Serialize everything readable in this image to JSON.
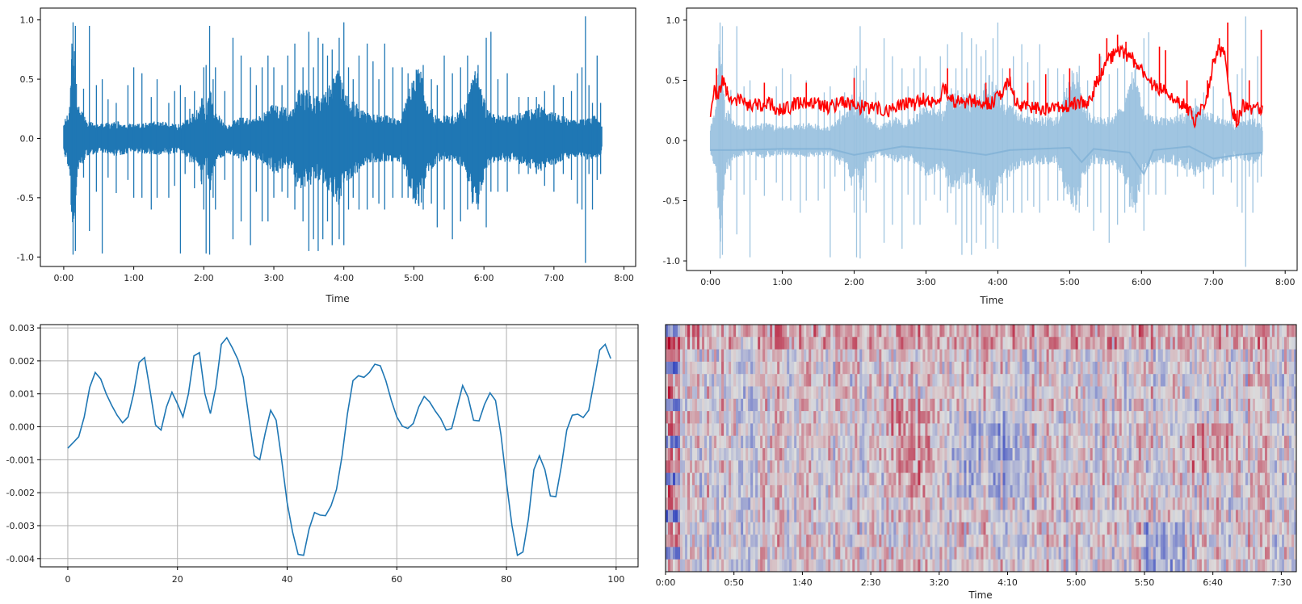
{
  "chart_data": [
    {
      "type": "line",
      "kind": "waveform",
      "series": [
        {
          "color": "#1f77b4"
        }
      ],
      "xlabel": "Time",
      "x_ticks": [
        "0:00",
        "1:00",
        "2:00",
        "3:00",
        "4:00",
        "5:00",
        "6:00",
        "7:00",
        "8:00"
      ],
      "xlim": [
        -20,
        490
      ],
      "y_ticks": [
        "-1.0",
        "-0.5",
        "0.0",
        "0.5",
        "1.0"
      ],
      "ylim": [
        -1.08,
        1.1
      ],
      "duration_s": 461,
      "envelope": [
        [
          0,
          0.12
        ],
        [
          5,
          0.3
        ],
        [
          8,
          0.95
        ],
        [
          12,
          0.3
        ],
        [
          20,
          0.15
        ],
        [
          30,
          0.12
        ],
        [
          45,
          0.15
        ],
        [
          60,
          0.12
        ],
        [
          80,
          0.15
        ],
        [
          100,
          0.12
        ],
        [
          115,
          0.25
        ],
        [
          118,
          0.4
        ],
        [
          122,
          0.2
        ],
        [
          125,
          0.5
        ],
        [
          128,
          0.25
        ],
        [
          140,
          0.12
        ],
        [
          155,
          0.2
        ],
        [
          160,
          0.15
        ],
        [
          170,
          0.2
        ],
        [
          180,
          0.3
        ],
        [
          195,
          0.25
        ],
        [
          200,
          0.45
        ],
        [
          210,
          0.4
        ],
        [
          220,
          0.35
        ],
        [
          230,
          0.5
        ],
        [
          236,
          0.6
        ],
        [
          240,
          0.4
        ],
        [
          250,
          0.3
        ],
        [
          260,
          0.22
        ],
        [
          270,
          0.2
        ],
        [
          290,
          0.2
        ],
        [
          298,
          0.5
        ],
        [
          305,
          0.62
        ],
        [
          312,
          0.3
        ],
        [
          320,
          0.2
        ],
        [
          335,
          0.2
        ],
        [
          345,
          0.3
        ],
        [
          350,
          0.55
        ],
        [
          355,
          0.6
        ],
        [
          362,
          0.25
        ],
        [
          370,
          0.2
        ],
        [
          385,
          0.2
        ],
        [
          395,
          0.23
        ],
        [
          405,
          0.3
        ],
        [
          415,
          0.25
        ],
        [
          425,
          0.2
        ],
        [
          440,
          0.15
        ],
        [
          455,
          0.2
        ],
        [
          461,
          0.12
        ]
      ],
      "spikes": [
        [
          7,
          0.8,
          -0.55
        ],
        [
          8,
          0.98,
          -0.98
        ],
        [
          10,
          0.95,
          -0.95
        ],
        [
          17,
          0.42,
          -0.33
        ],
        [
          22,
          0.95,
          -0.78
        ],
        [
          28,
          0.45,
          -0.45
        ],
        [
          33,
          0.5,
          -0.97
        ],
        [
          38,
          0.33,
          -0.33
        ],
        [
          45,
          0.3,
          -0.46
        ],
        [
          55,
          0.45,
          -0.35
        ],
        [
          60,
          0.6,
          -0.5
        ],
        [
          67,
          0.55,
          -0.5
        ],
        [
          75,
          0.35,
          -0.6
        ],
        [
          80,
          0.5,
          -0.5
        ],
        [
          90,
          0.3,
          -0.5
        ],
        [
          95,
          0.4,
          -0.4
        ],
        [
          100,
          0.45,
          -0.97
        ],
        [
          104,
          0.35,
          -0.3
        ],
        [
          108,
          0.25,
          -0.2
        ],
        [
          112,
          0.4,
          -0.42
        ],
        [
          120,
          0.6,
          -0.6
        ],
        [
          122,
          0.62,
          -0.97
        ],
        [
          125,
          0.95,
          -0.98
        ],
        [
          128,
          0.5,
          -0.5
        ],
        [
          130,
          0.6,
          -0.6
        ],
        [
          138,
          0.4,
          -0.35
        ],
        [
          145,
          0.85,
          -0.85
        ],
        [
          152,
          0.7,
          -0.7
        ],
        [
          160,
          0.6,
          -0.9
        ],
        [
          165,
          0.45,
          -0.45
        ],
        [
          170,
          0.6,
          -0.7
        ],
        [
          175,
          0.7,
          -0.7
        ],
        [
          180,
          0.6,
          -0.5
        ],
        [
          187,
          0.45,
          -0.45
        ],
        [
          192,
          0.7,
          -0.5
        ],
        [
          198,
          0.8,
          -0.6
        ],
        [
          205,
          0.6,
          -0.7
        ],
        [
          210,
          0.9,
          -0.95
        ],
        [
          214,
          0.6,
          -0.85
        ],
        [
          218,
          0.85,
          -0.95
        ],
        [
          222,
          0.8,
          -0.85
        ],
        [
          226,
          0.7,
          -0.7
        ],
        [
          230,
          0.75,
          -0.9
        ],
        [
          236,
          0.85,
          -0.85
        ],
        [
          240,
          0.98,
          -0.9
        ],
        [
          244,
          0.6,
          -0.6
        ],
        [
          248,
          0.5,
          -0.5
        ],
        [
          253,
          0.7,
          -0.6
        ],
        [
          260,
          0.8,
          -0.6
        ],
        [
          265,
          0.65,
          -0.5
        ],
        [
          270,
          0.5,
          -0.55
        ],
        [
          275,
          0.8,
          -0.6
        ],
        [
          282,
          0.6,
          -0.5
        ],
        [
          290,
          0.6,
          -0.5
        ],
        [
          295,
          0.55,
          -0.5
        ],
        [
          302,
          0.58,
          -0.52
        ],
        [
          308,
          0.62,
          -0.6
        ],
        [
          315,
          0.5,
          -0.55
        ],
        [
          320,
          0.45,
          -0.75
        ],
        [
          326,
          0.7,
          -0.6
        ],
        [
          333,
          0.55,
          -0.85
        ],
        [
          340,
          0.6,
          -0.7
        ],
        [
          346,
          0.7,
          -0.6
        ],
        [
          350,
          0.45,
          -0.55
        ],
        [
          355,
          0.62,
          -0.6
        ],
        [
          362,
          0.85,
          -0.75
        ],
        [
          366,
          0.9,
          -0.45
        ],
        [
          372,
          0.5,
          -0.45
        ],
        [
          380,
          0.55,
          -0.45
        ],
        [
          390,
          0.35,
          -0.3
        ],
        [
          398,
          0.35,
          -0.3
        ],
        [
          405,
          0.35,
          -0.3
        ],
        [
          412,
          0.4,
          -0.4
        ],
        [
          420,
          0.45,
          -0.45
        ],
        [
          428,
          0.35,
          -0.3
        ],
        [
          435,
          0.4,
          -0.35
        ],
        [
          440,
          0.55,
          -0.55
        ],
        [
          444,
          0.6,
          -0.6
        ],
        [
          447,
          1.03,
          -1.05
        ],
        [
          450,
          0.45,
          -0.3
        ],
        [
          453,
          0.3,
          -0.6
        ],
        [
          457,
          0.7,
          -0.35
        ],
        [
          460,
          0.3,
          -0.3
        ]
      ]
    },
    {
      "type": "line",
      "kind": "waveform-overlay",
      "series": [
        {
          "role": "waveform",
          "color": "#9bc2df"
        },
        {
          "role": "envelope",
          "color": "#ff0000"
        }
      ],
      "xlabel": "Time",
      "x_ticks": [
        "0:00",
        "1:00",
        "2:00",
        "3:00",
        "4:00",
        "5:00",
        "6:00",
        "7:00",
        "8:00"
      ],
      "xlim": [
        -20,
        490
      ],
      "y_ticks": [
        "-1.0",
        "-0.5",
        "0.0",
        "0.5",
        "1.0"
      ],
      "ylim": [
        -1.08,
        1.1
      ],
      "duration_s": 461,
      "red_curve": [
        [
          0,
          0.25
        ],
        [
          3,
          0.45
        ],
        [
          6,
          0.35
        ],
        [
          10,
          0.5
        ],
        [
          14,
          0.4
        ],
        [
          20,
          0.35
        ],
        [
          30,
          0.3
        ],
        [
          40,
          0.3
        ],
        [
          50,
          0.3
        ],
        [
          60,
          0.25
        ],
        [
          70,
          0.3
        ],
        [
          80,
          0.3
        ],
        [
          90,
          0.3
        ],
        [
          100,
          0.28
        ],
        [
          110,
          0.32
        ],
        [
          120,
          0.28
        ],
        [
          130,
          0.28
        ],
        [
          140,
          0.27
        ],
        [
          150,
          0.25
        ],
        [
          160,
          0.3
        ],
        [
          170,
          0.3
        ],
        [
          180,
          0.35
        ],
        [
          190,
          0.3
        ],
        [
          195,
          0.45
        ],
        [
          200,
          0.35
        ],
        [
          210,
          0.3
        ],
        [
          220,
          0.33
        ],
        [
          230,
          0.3
        ],
        [
          240,
          0.35
        ],
        [
          250,
          0.5
        ],
        [
          255,
          0.3
        ],
        [
          260,
          0.3
        ],
        [
          270,
          0.28
        ],
        [
          280,
          0.25
        ],
        [
          290,
          0.28
        ],
        [
          300,
          0.3
        ],
        [
          305,
          0.32
        ],
        [
          315,
          0.3
        ],
        [
          320,
          0.42
        ],
        [
          330,
          0.65
        ],
        [
          340,
          0.75
        ],
        [
          350,
          0.7
        ],
        [
          360,
          0.6
        ],
        [
          370,
          0.45
        ],
        [
          380,
          0.4
        ],
        [
          390,
          0.35
        ],
        [
          400,
          0.25
        ],
        [
          405,
          0.15
        ],
        [
          410,
          0.3
        ],
        [
          415,
          0.35
        ],
        [
          420,
          0.65
        ],
        [
          425,
          0.75
        ],
        [
          430,
          0.7
        ],
        [
          435,
          0.25
        ],
        [
          440,
          0.15
        ],
        [
          445,
          0.3
        ],
        [
          455,
          0.25
        ],
        [
          461,
          0.28
        ]
      ],
      "red_spikes": [
        [
          5,
          0.6
        ],
        [
          14,
          0.45
        ],
        [
          45,
          0.48
        ],
        [
          80,
          0.48
        ],
        [
          120,
          0.52
        ],
        [
          198,
          0.6
        ],
        [
          230,
          0.48
        ],
        [
          250,
          0.6
        ],
        [
          265,
          0.48
        ],
        [
          280,
          0.55
        ],
        [
          300,
          0.6
        ],
        [
          325,
          0.72
        ],
        [
          331,
          0.85
        ],
        [
          340,
          0.88
        ],
        [
          347,
          0.82
        ],
        [
          375,
          0.78
        ],
        [
          380,
          0.75
        ],
        [
          398,
          0.5
        ],
        [
          402,
          0.25
        ],
        [
          415,
          0.5
        ],
        [
          425,
          0.85
        ],
        [
          432,
          0.98
        ],
        [
          440,
          0.25
        ],
        [
          450,
          0.5
        ],
        [
          460,
          0.92
        ]
      ],
      "lower_envelope": [
        [
          0,
          -0.08
        ],
        [
          20,
          -0.08
        ],
        [
          60,
          -0.07
        ],
        [
          100,
          -0.07
        ],
        [
          120,
          -0.12
        ],
        [
          160,
          -0.05
        ],
        [
          200,
          -0.08
        ],
        [
          230,
          -0.12
        ],
        [
          250,
          -0.08
        ],
        [
          300,
          -0.06
        ],
        [
          310,
          -0.18
        ],
        [
          320,
          -0.07
        ],
        [
          350,
          -0.1
        ],
        [
          362,
          -0.28
        ],
        [
          370,
          -0.08
        ],
        [
          400,
          -0.05
        ],
        [
          420,
          -0.15
        ],
        [
          440,
          -0.12
        ],
        [
          461,
          -0.1
        ]
      ]
    },
    {
      "type": "line",
      "series": [
        {
          "color": "#1f77b4"
        }
      ],
      "grid": true,
      "x_ticks": [
        0,
        20,
        40,
        60,
        80,
        100
      ],
      "xlim": [
        -5,
        104
      ],
      "y_ticks": [
        "0.003",
        "0.002",
        "0.001",
        "0.000",
        "-0.001",
        "-0.002",
        "-0.003",
        "-0.004"
      ],
      "ylim": [
        -0.00425,
        0.0031
      ],
      "x": [
        0,
        1,
        2,
        3,
        4,
        5,
        6,
        7,
        8,
        9,
        10,
        11,
        12,
        13,
        14,
        15,
        16,
        17,
        18,
        19,
        20,
        21,
        22,
        23,
        24,
        25,
        26,
        27,
        28,
        29,
        30,
        31,
        32,
        33,
        34,
        35,
        36,
        37,
        38,
        39,
        40,
        41,
        42,
        43,
        44,
        45,
        46,
        47,
        48,
        49,
        50,
        51,
        52,
        53,
        54,
        55,
        56,
        57,
        58,
        59,
        60,
        61,
        62,
        63,
        64,
        65,
        66,
        67,
        68,
        69,
        70,
        71,
        72,
        73,
        74,
        75,
        76,
        77,
        78,
        79,
        80,
        81,
        82,
        83,
        84,
        85,
        86,
        87,
        88,
        89,
        90,
        91,
        92,
        93,
        94,
        95,
        96,
        97,
        98,
        99
      ],
      "values": [
        -0.00065,
        -0.00048,
        -0.0003,
        0.0003,
        0.0012,
        0.00165,
        0.00145,
        0.001,
        0.00065,
        0.00035,
        0.00012,
        0.0003,
        0.001,
        0.00195,
        0.0021,
        0.0011,
        5e-05,
        -0.0001,
        0.0006,
        0.00105,
        0.0007,
        0.0003,
        0.001,
        0.00215,
        0.00225,
        0.001,
        0.0004,
        0.0012,
        0.0025,
        0.0027,
        0.0024,
        0.00205,
        0.0015,
        0.0003,
        -0.00088,
        -0.001,
        -0.0002,
        0.0005,
        0.0002,
        -0.001,
        -0.0023,
        -0.0032,
        -0.00387,
        -0.0039,
        -0.0031,
        -0.0026,
        -0.00268,
        -0.0027,
        -0.0024,
        -0.0019,
        -0.0009,
        0.0004,
        0.0014,
        0.00155,
        0.0015,
        0.00165,
        0.0019,
        0.00185,
        0.0014,
        0.0008,
        0.0003,
        2e-05,
        -5e-05,
        0.0001,
        0.0006,
        0.00092,
        0.00075,
        0.00048,
        0.00025,
        -0.0001,
        -5e-05,
        0.0006,
        0.00125,
        0.0009,
        0.0002,
        0.00018,
        0.00068,
        0.00103,
        0.0008,
        -0.00025,
        -0.0017,
        -0.003,
        -0.0039,
        -0.0038,
        -0.0028,
        -0.0013,
        -0.00088,
        -0.0013,
        -0.0021,
        -0.00212,
        -0.0012,
        -0.0001,
        0.00035,
        0.00038,
        0.00028,
        0.0005,
        0.0014,
        0.00233,
        0.0025,
        0.00207
      ]
    },
    {
      "type": "heatmap",
      "kind": "spectrogram",
      "xlabel": "Time",
      "x_ticks": [
        "0:00",
        "0:50",
        "1:40",
        "2:30",
        "3:20",
        "4:10",
        "5:00",
        "5:50",
        "6:40",
        "7:30"
      ],
      "x_tick_seconds": [
        0,
        50,
        100,
        150,
        200,
        250,
        300,
        350,
        400,
        450
      ],
      "duration_s": 461,
      "rows": 20,
      "colormap": [
        "#3b4cc0",
        "#dcdddd",
        "#b40426"
      ]
    }
  ]
}
